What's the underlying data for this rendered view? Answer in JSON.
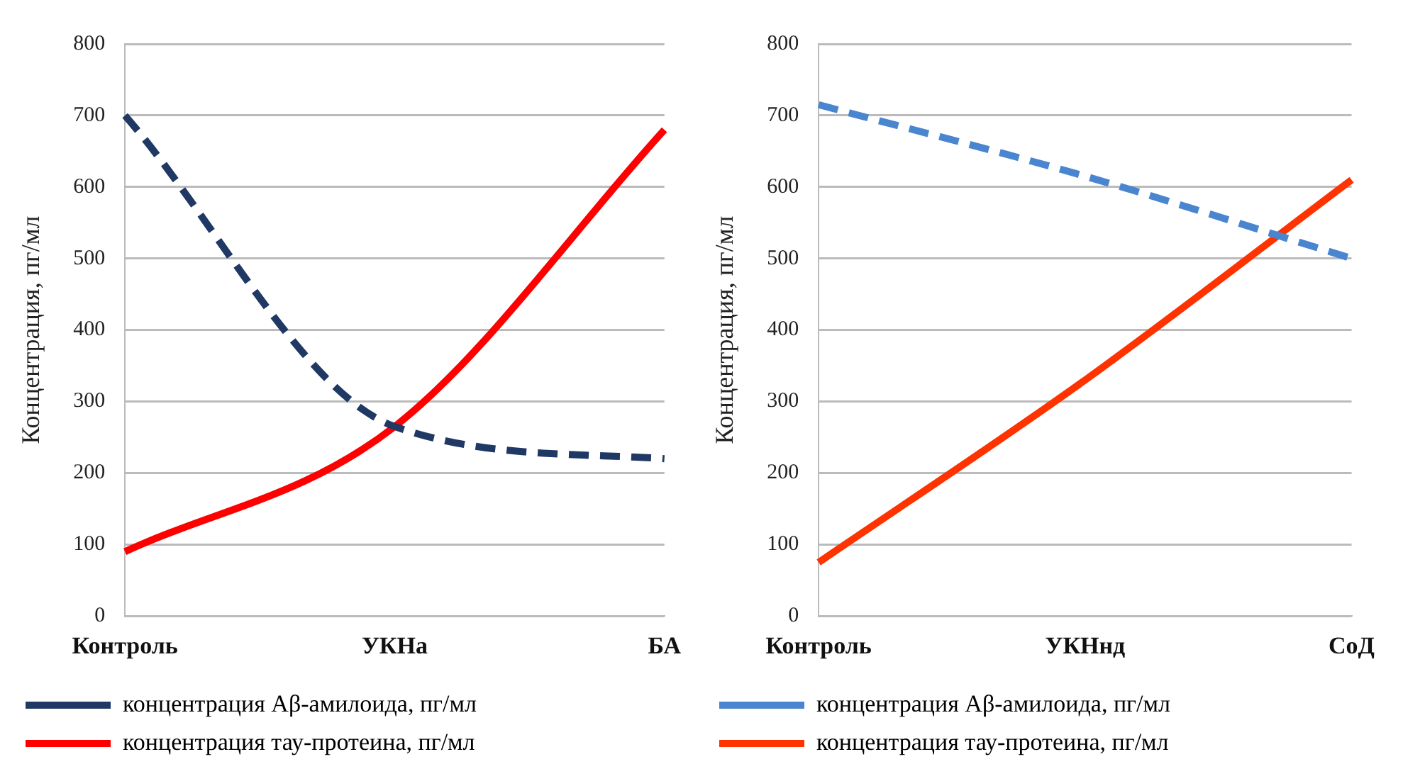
{
  "chart_data": [
    {
      "type": "line",
      "categories": [
        "Контроль",
        "УКНа",
        "БА"
      ],
      "ylabel": "Концентрация, пг/мл",
      "ylim": [
        0,
        800
      ],
      "yticks": [
        0,
        100,
        200,
        300,
        400,
        500,
        600,
        700,
        800
      ],
      "grid": "y",
      "legend": "bottom",
      "marker": "none",
      "series": [
        {
          "name": "концентрация Aβ-амилоида, пг/мл",
          "color": "#1f3864",
          "line_style": "dashed",
          "values": [
            700,
            265,
            220
          ]
        },
        {
          "name": "концентрация тау-протеина, пг/мл",
          "color": "#ff0000",
          "line_style": "solid",
          "values": [
            90,
            265,
            680
          ]
        }
      ]
    },
    {
      "type": "line",
      "categories": [
        "Контроль",
        "УКНнд",
        "СоД"
      ],
      "ylabel": "Концентрация, пг/мл",
      "ylim": [
        0,
        800
      ],
      "yticks": [
        0,
        100,
        200,
        300,
        400,
        500,
        600,
        700,
        800
      ],
      "grid": "y",
      "legend": "bottom",
      "marker": "none",
      "series": [
        {
          "name": "концентрация Aβ-амилоида, пг/мл",
          "color": "#4a86d0",
          "line_style": "dashed",
          "values": [
            715,
            615,
            500
          ]
        },
        {
          "name": "концентрация тау-протеина, пг/мл",
          "color": "#ff3300",
          "line_style": "solid",
          "values": [
            75,
            330,
            610
          ]
        }
      ]
    }
  ]
}
